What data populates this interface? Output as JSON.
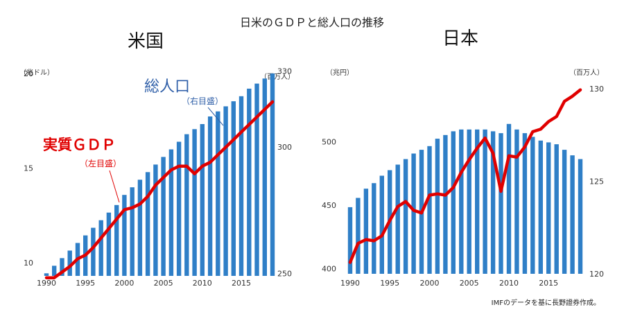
{
  "title": "日米のＧＤＰと総人口の推移",
  "source": "IMFのデータを基に長野證券作成。",
  "colors": {
    "bar": "#2f7fc7",
    "line": "#e00000",
    "text": "#222222",
    "pop_label": "#2f5fa8"
  },
  "chart_data": [
    {
      "panel_title": "米国",
      "type": "bar+line",
      "x_tick_labels": [
        "1990",
        "1995",
        "2000",
        "2005",
        "2010",
        "2015"
      ],
      "left_axis": {
        "unit": "（兆ドル）",
        "ticks": [
          10,
          15,
          20
        ],
        "ylim": [
          9.3,
          20.4
        ]
      },
      "right_axis": {
        "unit": "（百万人）",
        "ticks": [
          250,
          300,
          330
        ],
        "ylim": [
          249,
          332
        ]
      },
      "years": [
        1990,
        1991,
        1992,
        1993,
        1994,
        1995,
        1996,
        1997,
        1998,
        1999,
        2000,
        2001,
        2002,
        2003,
        2004,
        2005,
        2006,
        2007,
        2008,
        2009,
        2010,
        2011,
        2012,
        2013,
        2014,
        2015,
        2016,
        2017,
        2018,
        2019
      ],
      "series": [
        {
          "name": "総人口",
          "sub_label": "（右目盛）",
          "axis": "right",
          "kind": "bar",
          "values": [
            250,
            253,
            256,
            259,
            262,
            265,
            268,
            271,
            274,
            277,
            281,
            284,
            287,
            290,
            293,
            296,
            299,
            302,
            305,
            307,
            309,
            312,
            314,
            316,
            318,
            320,
            323,
            325,
            327,
            329
          ]
        },
        {
          "name": "実質ＧＤＰ",
          "sub_label": "（左目盛）",
          "axis": "left",
          "kind": "line",
          "values": [
            9.2,
            9.2,
            9.5,
            9.8,
            10.2,
            10.4,
            10.8,
            11.3,
            11.8,
            12.3,
            12.8,
            12.9,
            13.1,
            13.5,
            14.1,
            14.5,
            14.9,
            15.1,
            15.1,
            14.7,
            15.1,
            15.3,
            15.7,
            16.1,
            16.5,
            16.9,
            17.3,
            17.7,
            18.1,
            18.5
          ]
        }
      ]
    },
    {
      "panel_title": "日本",
      "type": "bar+line",
      "x_tick_labels": [
        "1990",
        "1995",
        "2000",
        "2005",
        "2010",
        "2015"
      ],
      "left_axis": {
        "unit": "（兆円）",
        "ticks": [
          400,
          450,
          500
        ],
        "ylim": [
          396,
          555
        ]
      },
      "right_axis": {
        "unit": "（百万人）",
        "ticks": [
          120,
          125,
          130
        ],
        "ylim": [
          120,
          130.9
        ]
      },
      "years": [
        1990,
        1991,
        1992,
        1993,
        1994,
        1995,
        1996,
        1997,
        1998,
        1999,
        2000,
        2001,
        2002,
        2003,
        2004,
        2005,
        2006,
        2007,
        2008,
        2009,
        2010,
        2011,
        2012,
        2013,
        2014,
        2015,
        2016,
        2017,
        2018,
        2019
      ],
      "series": [
        {
          "name": "総人口",
          "axis": "right",
          "kind": "bar",
          "values": [
            123.6,
            124.1,
            124.6,
            124.9,
            125.3,
            125.6,
            125.9,
            126.2,
            126.5,
            126.7,
            126.9,
            127.3,
            127.5,
            127.7,
            127.8,
            127.8,
            127.8,
            127.8,
            127.7,
            127.6,
            128.1,
            127.8,
            127.6,
            127.4,
            127.2,
            127.1,
            127.0,
            126.7,
            126.4,
            126.2
          ]
        },
        {
          "name": "実質ＧＤＰ",
          "axis": "left",
          "kind": "line",
          "values": [
            405,
            420,
            423,
            422,
            426,
            438,
            449,
            453,
            446,
            444,
            458,
            459,
            458,
            464,
            476,
            486,
            495,
            503,
            491,
            461,
            489,
            488,
            496,
            508,
            510,
            516,
            520,
            532,
            536,
            541
          ]
        }
      ]
    }
  ]
}
